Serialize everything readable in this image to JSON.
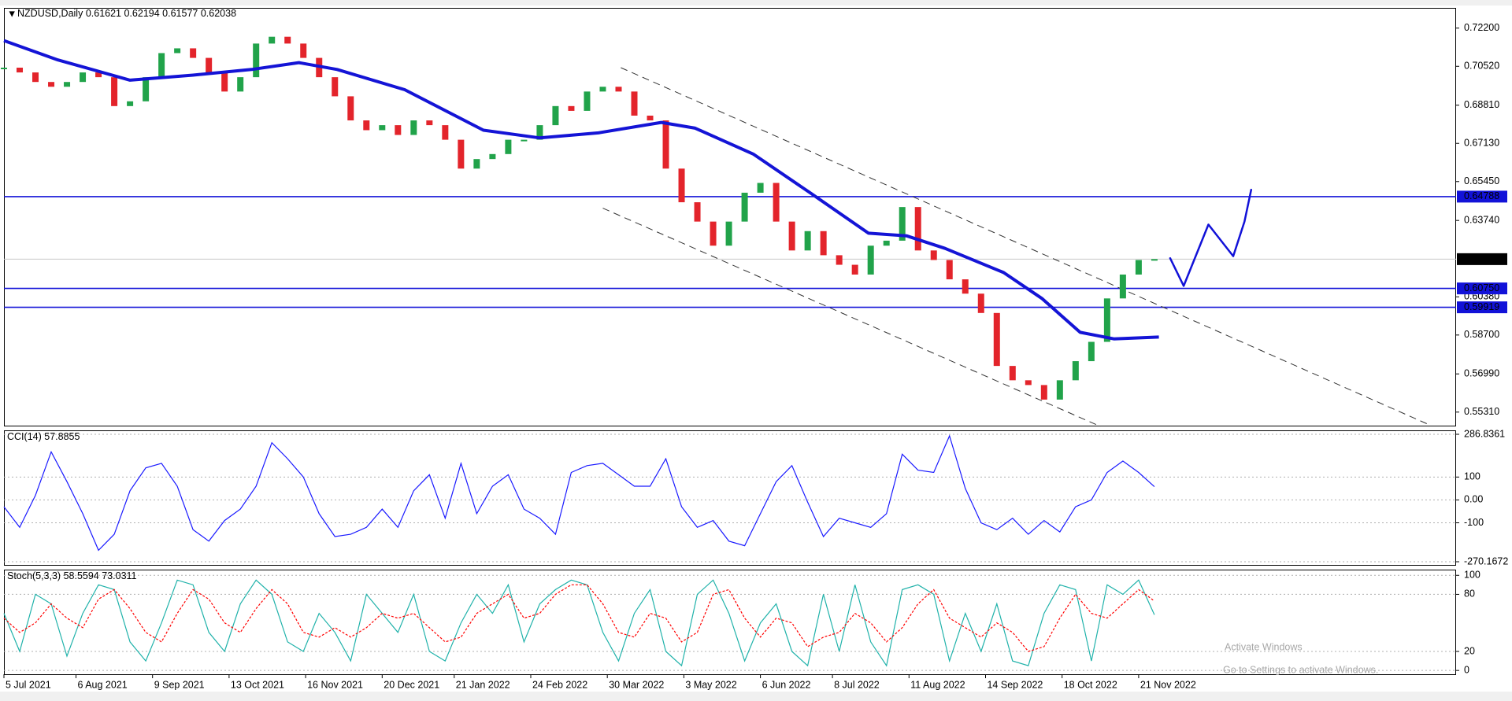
{
  "chart_data": [
    {
      "type": "candlestick",
      "symbol": "NZDUSD,Daily",
      "ohlc": [
        0.61621,
        0.62194,
        0.61577,
        0.62038
      ],
      "up_color": "#21a34a",
      "down_color": "#e3242b",
      "x": [
        "2021-07-05",
        "2021-07-12",
        "2021-07-19",
        "2021-07-26",
        "2021-08-02",
        "2021-08-09",
        "2021-08-16",
        "2021-08-23",
        "2021-08-30",
        "2021-09-06",
        "2021-09-13",
        "2021-09-20",
        "2021-09-27",
        "2021-10-04",
        "2021-10-11",
        "2021-10-18",
        "2021-10-25",
        "2021-11-01",
        "2021-11-08",
        "2021-11-15",
        "2021-11-22",
        "2021-11-29",
        "2021-12-06",
        "2021-12-13",
        "2021-12-20",
        "2021-12-27",
        "2022-01-03",
        "2022-01-10",
        "2022-01-17",
        "2022-01-24",
        "2022-01-31",
        "2022-02-07",
        "2022-02-14",
        "2022-02-21",
        "2022-02-28",
        "2022-03-07",
        "2022-03-14",
        "2022-03-21",
        "2022-03-28",
        "2022-04-04",
        "2022-04-11",
        "2022-04-18",
        "2022-04-25",
        "2022-05-02",
        "2022-05-09",
        "2022-05-16",
        "2022-05-23",
        "2022-05-30",
        "2022-06-06",
        "2022-06-13",
        "2022-06-20",
        "2022-06-27",
        "2022-07-04",
        "2022-07-11",
        "2022-07-18",
        "2022-07-25",
        "2022-08-01",
        "2022-08-08",
        "2022-08-15",
        "2022-08-22",
        "2022-08-29",
        "2022-09-05",
        "2022-09-12",
        "2022-09-19",
        "2022-09-26",
        "2022-10-03",
        "2022-10-10",
        "2022-10-17",
        "2022-10-24",
        "2022-10-31",
        "2022-11-07",
        "2022-11-14",
        "2022-11-21",
        "2022-11-28"
      ],
      "values": [
        0.7046,
        0.7025,
        0.6983,
        0.6962,
        0.6983,
        0.7025,
        0.7004,
        0.6877,
        0.6898,
        0.7004,
        0.711,
        0.7131,
        0.7089,
        0.7025,
        0.6941,
        0.7004,
        0.7152,
        0.7182,
        0.7152,
        0.7089,
        0.7004,
        0.692,
        0.6814,
        0.6771,
        0.6793,
        0.675,
        0.6814,
        0.6793,
        0.6729,
        0.6602,
        0.6644,
        0.6666,
        0.6729,
        0.6729,
        0.6793,
        0.6877,
        0.6856,
        0.6941,
        0.6962,
        0.6941,
        0.6835,
        0.6814,
        0.6602,
        0.6454,
        0.6369,
        0.6263,
        0.6369,
        0.6496,
        0.6539,
        0.6369,
        0.6242,
        0.6327,
        0.6221,
        0.6179,
        0.6136,
        0.6263,
        0.6285,
        0.6433,
        0.6242,
        0.62,
        0.6115,
        0.6052,
        0.5967,
        0.5734,
        0.5671,
        0.565,
        0.5586,
        0.5671,
        0.5755,
        0.584,
        0.6031,
        0.6136,
        0.62,
        0.6204
      ],
      "ma": {
        "color": "#1414d6",
        "x": [
          "2021-07-05",
          "2021-07-29",
          "2021-08-30",
          "2021-09-27",
          "2021-10-23",
          "2021-11-13",
          "2021-11-30",
          "2021-12-30",
          "2022-02-03",
          "2022-02-28",
          "2022-03-26",
          "2022-04-23",
          "2022-05-08",
          "2022-06-03",
          "2022-06-28",
          "2022-07-24",
          "2022-08-10",
          "2022-08-27",
          "2022-09-22",
          "2022-10-09",
          "2022-10-26",
          "2022-11-10",
          "2022-11-30"
        ],
        "values": [
          0.7165,
          0.708,
          0.6991,
          0.7013,
          0.7038,
          0.7068,
          0.7038,
          0.6949,
          0.6771,
          0.6737,
          0.6759,
          0.6805,
          0.678,
          0.6665,
          0.6496,
          0.6318,
          0.6306,
          0.6251,
          0.6145,
          0.6031,
          0.5882,
          0.5853,
          0.5861
        ]
      },
      "hlines": [
        {
          "value": 0.64788,
          "label": "0.64788",
          "color": "#1212d8"
        },
        {
          "value": 0.62038,
          "color": "#c8c8c8",
          "label_color": "#000000"
        },
        {
          "value": 0.6075,
          "label": "0.60750",
          "color": "#1212d8"
        },
        {
          "value": 0.59919,
          "label": "0.59919",
          "color": "#1212d8"
        }
      ],
      "trendlines": [
        {
          "x": [
            "2022-04-05",
            "2023-03-29"
          ],
          "values": [
            0.7046,
            0.548
          ]
        },
        {
          "x": [
            "2022-03-28",
            "2022-11-04"
          ],
          "values": [
            0.6428,
            0.5468
          ]
        }
      ],
      "drawing": {
        "color": "#1212d8",
        "x": [
          "2022-12-05",
          "2022-12-11",
          "2022-12-22",
          "2023-01-02",
          "2023-01-07",
          "2023-01-10"
        ],
        "values": [
          0.6208,
          0.6086,
          0.6356,
          0.6217,
          0.6369,
          0.6509
        ]
      },
      "xlim": [
        "2021-07-05",
        "2023-04-11"
      ],
      "xticks": [
        {
          "value": "2021-07-05",
          "label": "5 Jul 2021"
        },
        {
          "value": "2021-08-06",
          "label": "6 Aug 2021"
        },
        {
          "value": "2021-09-09",
          "label": "9 Sep 2021"
        },
        {
          "value": "2021-10-13",
          "label": "13 Oct 2021"
        },
        {
          "value": "2021-11-16",
          "label": "16 Nov 2021"
        },
        {
          "value": "2021-12-20",
          "label": "20 Dec 2021"
        },
        {
          "value": "2022-01-21",
          "label": "21 Jan 2022"
        },
        {
          "value": "2022-02-24",
          "label": "24 Feb 2022"
        },
        {
          "value": "2022-03-30",
          "label": "30 Mar 2022"
        },
        {
          "value": "2022-05-03",
          "label": "3 May 2022"
        },
        {
          "value": "2022-06-06",
          "label": "6 Jun 2022"
        },
        {
          "value": "2022-07-08",
          "label": "8 Jul 2022"
        },
        {
          "value": "2022-08-11",
          "label": "11 Aug 2022"
        },
        {
          "value": "2022-09-14",
          "label": "14 Sep 2022"
        },
        {
          "value": "2022-10-18",
          "label": "18 Oct 2022"
        },
        {
          "value": "2022-11-21",
          "label": "21 Nov 2022"
        }
      ],
      "ylim": [
        0.5468,
        0.7309
      ],
      "yticks": [
        {
          "value": 0.722,
          "label": "0.72200"
        },
        {
          "value": 0.7052,
          "label": "0.70520"
        },
        {
          "value": 0.6881,
          "label": "0.68810"
        },
        {
          "value": 0.6713,
          "label": "0.67130"
        },
        {
          "value": 0.6545,
          "label": "0.65450"
        },
        {
          "value": 0.6374,
          "label": "0.63740"
        },
        {
          "value": 0.6038,
          "label": "0.60380"
        },
        {
          "value": 0.587,
          "label": "0.58700"
        },
        {
          "value": 0.5699,
          "label": "0.56990"
        },
        {
          "value": 0.5531,
          "label": "0.55310"
        }
      ]
    },
    {
      "type": "line",
      "title": "CCI(14)",
      "series": [
        {
          "color": "#1a1aff",
          "values": [
            -30,
            -120,
            20,
            210,
            80,
            -60,
            -220,
            -150,
            40,
            140,
            160,
            60,
            -130,
            -180,
            -90,
            -40,
            60,
            250,
            180,
            100,
            -60,
            -160,
            -150,
            -120,
            -40,
            -120,
            40,
            110,
            -80,
            160,
            -60,
            60,
            110,
            -40,
            -80,
            -150,
            120,
            150,
            160,
            110,
            60,
            60,
            180,
            -30,
            -120,
            -90,
            -180,
            -200,
            -60,
            80,
            150,
            -10,
            -160,
            -80,
            -100,
            -120,
            -60,
            200,
            130,
            120,
            280,
            50,
            -100,
            -130,
            -80,
            -150,
            -90,
            -140,
            -30,
            0,
            120,
            170,
            120,
            57.8855
          ]
        }
      ],
      "ylim": [
        -270.1672,
        286.8361
      ],
      "yticks": [
        286.8361,
        100,
        {
          "value": 0,
          "label": "0.00"
        },
        -100,
        -270.1672
      ]
    },
    {
      "type": "line",
      "title": "Stoch(5,3,3)",
      "series": [
        {
          "color": "#20b2aa",
          "values": [
            60,
            20,
            80,
            70,
            15,
            60,
            90,
            85,
            30,
            10,
            50,
            95,
            90,
            40,
            20,
            70,
            95,
            80,
            30,
            20,
            60,
            40,
            10,
            80,
            60,
            40,
            80,
            20,
            10,
            50,
            80,
            60,
            90,
            30,
            70,
            85,
            95,
            90,
            40,
            10,
            60,
            85,
            20,
            5,
            80,
            95,
            60,
            10,
            50,
            70,
            20,
            5,
            80,
            20,
            90,
            30,
            5,
            85,
            90,
            80,
            10,
            60,
            20,
            70,
            10,
            5,
            60,
            90,
            85,
            10,
            90,
            80,
            95,
            58.5594
          ]
        },
        {
          "color": "#ff0000",
          "dashed": true,
          "values": [
            55,
            40,
            50,
            70,
            55,
            45,
            75,
            85,
            65,
            40,
            30,
            60,
            85,
            75,
            50,
            40,
            65,
            85,
            70,
            40,
            35,
            45,
            35,
            45,
            60,
            55,
            60,
            45,
            30,
            35,
            60,
            70,
            80,
            55,
            60,
            80,
            90,
            90,
            70,
            40,
            35,
            60,
            55,
            30,
            40,
            80,
            85,
            55,
            35,
            55,
            50,
            25,
            35,
            40,
            60,
            50,
            30,
            45,
            70,
            85,
            55,
            45,
            35,
            50,
            40,
            20,
            25,
            55,
            80,
            60,
            55,
            70,
            85,
            73.0311
          ]
        }
      ],
      "ylim": [
        -4,
        106
      ],
      "yticks": [
        100,
        80,
        20,
        0
      ]
    }
  ],
  "watermark": {
    "title": "Activate Windows",
    "subtitle": "Go to Settings to activate Windows."
  }
}
